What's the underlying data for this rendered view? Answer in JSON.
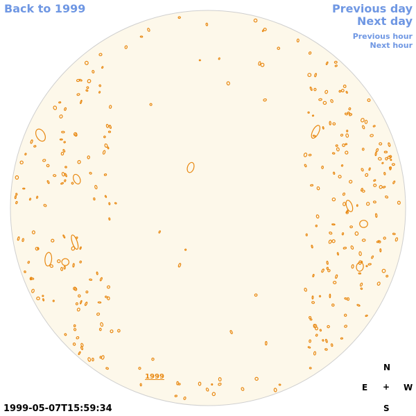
{
  "nav": {
    "back": "Back to 1999",
    "previous_day": "Previous day",
    "next_day": "Next day",
    "previous_hour": "Previous hour",
    "next_hour": "Next hour"
  },
  "disc_label": "1999",
  "compass": {
    "north": "N",
    "east": "E",
    "center": "+",
    "west": "W",
    "south": "S"
  },
  "timestamp": "1999-05-07T15:59:34"
}
